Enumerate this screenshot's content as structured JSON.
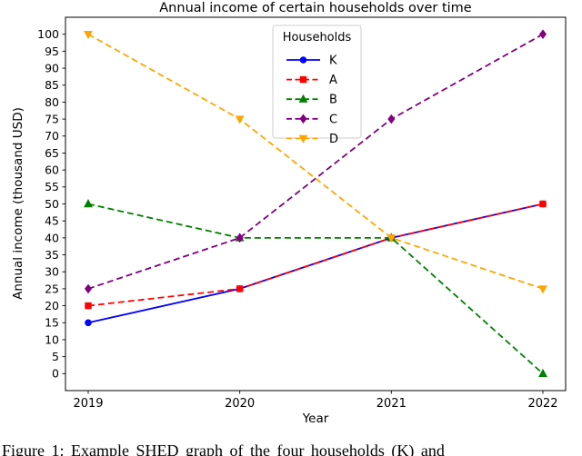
{
  "chart_data": {
    "type": "line",
    "title": "Annual income of certain households over time",
    "xlabel": "Year",
    "ylabel": "Annual income (thousand USD)",
    "x": [
      2019,
      2020,
      2021,
      2022
    ],
    "xticks": [
      "2019",
      "2020",
      "2021",
      "2022"
    ],
    "yticks": [
      0,
      5,
      10,
      15,
      20,
      25,
      30,
      35,
      40,
      45,
      50,
      55,
      60,
      65,
      70,
      75,
      80,
      85,
      90,
      95,
      100
    ],
    "xlim": [
      2018.85,
      2022.15
    ],
    "ylim": [
      -5,
      105
    ],
    "grid": false,
    "legend": {
      "title": "Households",
      "position": "upper-center"
    },
    "series": [
      {
        "name": "K",
        "values": [
          15,
          25,
          40,
          50
        ],
        "color": "#0000ff",
        "linestyle": "solid",
        "marker": "circle"
      },
      {
        "name": "A",
        "values": [
          20,
          25,
          40,
          50
        ],
        "color": "#ff0000",
        "linestyle": "dashed",
        "marker": "square"
      },
      {
        "name": "B",
        "values": [
          50,
          40,
          40,
          0
        ],
        "color": "#008000",
        "linestyle": "dashed",
        "marker": "triangle-up"
      },
      {
        "name": "C",
        "values": [
          25,
          40,
          75,
          100
        ],
        "color": "#800080",
        "linestyle": "dashed",
        "marker": "diamond"
      },
      {
        "name": "D",
        "values": [
          100,
          75,
          40,
          25
        ],
        "color": "#ffa500",
        "linestyle": "dashed",
        "marker": "triangle-down"
      }
    ]
  },
  "caption": {
    "text": "Figure 1:  Example SHED graph of the four households (K) and"
  }
}
